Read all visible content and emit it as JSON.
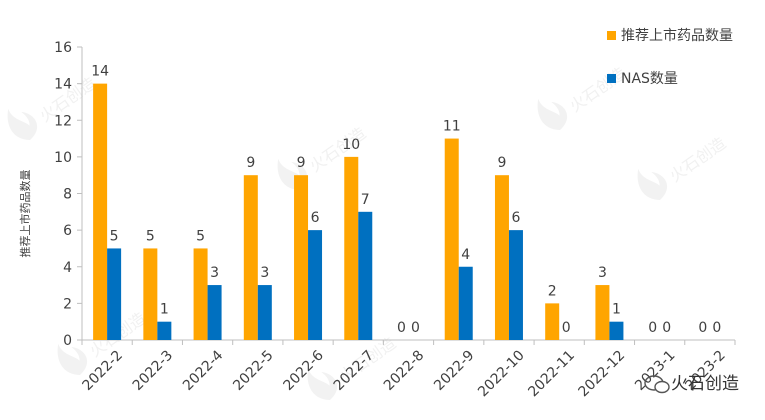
{
  "chart_data": {
    "type": "bar",
    "title": "",
    "xlabel": "",
    "ylabel": "推荐上市药品数量",
    "ylim": [
      0,
      16
    ],
    "yticks": [
      0,
      2,
      4,
      6,
      8,
      10,
      12,
      14,
      16
    ],
    "grid": false,
    "legend_position": "top-right",
    "categories": [
      "2022-2",
      "2022-3",
      "2022-4",
      "2022-5",
      "2022-6",
      "2022-7",
      "2022-8",
      "2022-9",
      "2022-10",
      "2022-11",
      "2022-12",
      "2023-1",
      "2023-2"
    ],
    "series": [
      {
        "name": "推荐上市药品数量",
        "color": "#FFA500",
        "values": [
          14,
          5,
          5,
          9,
          9,
          10,
          0,
          11,
          9,
          2,
          3,
          0,
          0
        ]
      },
      {
        "name": "NAS数量",
        "color": "#0070C0",
        "values": [
          5,
          1,
          3,
          3,
          6,
          7,
          0,
          4,
          6,
          0,
          1,
          0,
          0
        ]
      }
    ]
  },
  "watermark": {
    "text": "火石创造",
    "icon": "wechat-icon"
  }
}
